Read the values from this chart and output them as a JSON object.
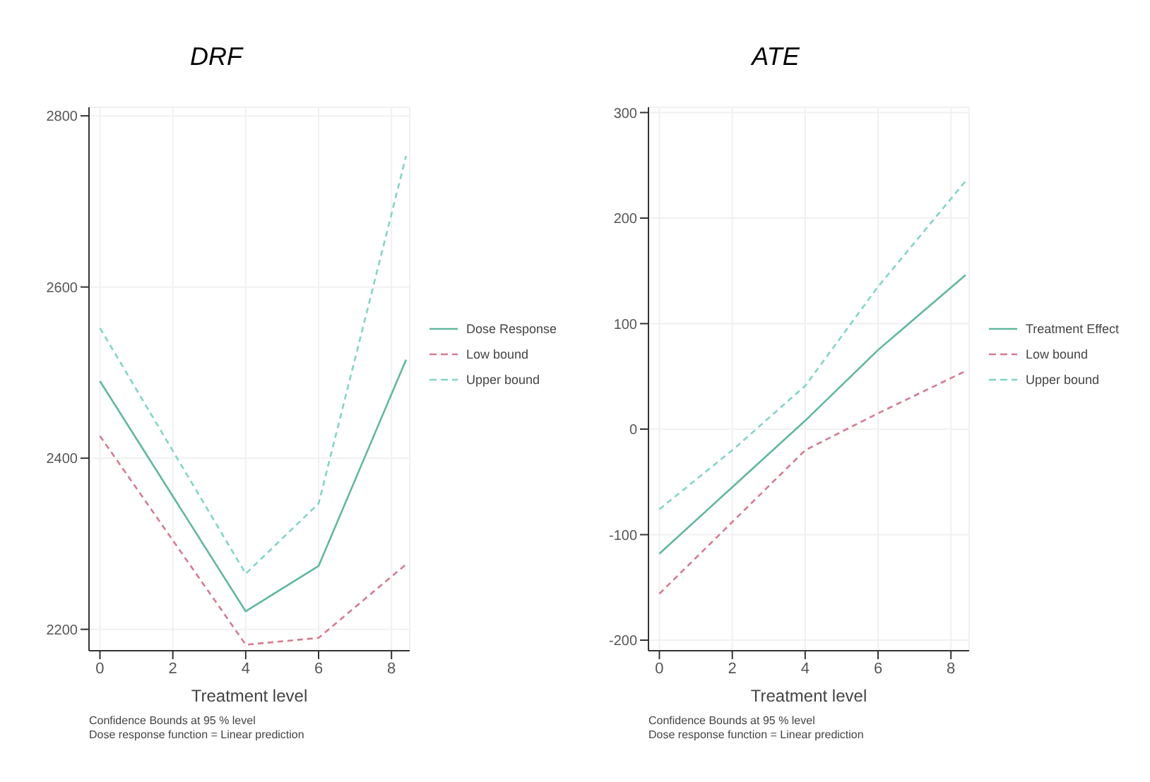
{
  "chart_data": [
    {
      "type": "line",
      "title": "DRF",
      "xlabel": "Treatment level",
      "xlim": [
        -0.3,
        8.5
      ],
      "xticks": [
        0,
        2,
        4,
        6,
        8
      ],
      "ylim": [
        2175,
        2810
      ],
      "yticks": [
        2200,
        2400,
        2600,
        2800
      ],
      "grid": true,
      "legend": "right",
      "marker": "none",
      "annotations": [
        "Confidence Bounds at 95 % level",
        "Dose response function = Linear prediction"
      ],
      "series": [
        {
          "name": "Dose Response",
          "color": "#5fb8a0",
          "line_style": "solid",
          "x": [
            0,
            4,
            6,
            8.4
          ],
          "values": [
            2490,
            2221,
            2274,
            2515
          ]
        },
        {
          "name": "Low bound",
          "color": "#d77a8f",
          "line_style": "dashed",
          "x": [
            0,
            4,
            6,
            8.4
          ],
          "values": [
            2426,
            2182,
            2190,
            2276
          ]
        },
        {
          "name": "Upper bound",
          "color": "#7fd6c8",
          "line_style": "dashed",
          "x": [
            0,
            4,
            6,
            8.4
          ],
          "values": [
            2552,
            2265,
            2347,
            2753
          ]
        }
      ]
    },
    {
      "type": "line",
      "title": "ATE",
      "xlabel": "Treatment level",
      "xlim": [
        -0.3,
        8.5
      ],
      "xticks": [
        0,
        2,
        4,
        6,
        8
      ],
      "ylim": [
        -210,
        305
      ],
      "yticks": [
        -200,
        -100,
        0,
        100,
        200,
        300
      ],
      "grid": true,
      "legend": "right",
      "marker": "none",
      "annotations": [
        "Confidence Bounds at 95 % level",
        "Dose response function = Linear prediction"
      ],
      "series": [
        {
          "name": "Treatment Effect",
          "color": "#5fb8a0",
          "line_style": "solid",
          "x": [
            0,
            2,
            4,
            6,
            8.4
          ],
          "values": [
            -118,
            -55,
            8,
            75,
            146
          ]
        },
        {
          "name": "Low bound",
          "color": "#d77a8f",
          "line_style": "dashed",
          "x": [
            0,
            2,
            4,
            6,
            8.4
          ],
          "values": [
            -156,
            -88,
            -20,
            15,
            55
          ]
        },
        {
          "name": "Upper bound",
          "color": "#7fd6c8",
          "line_style": "dashed",
          "x": [
            0,
            2,
            4,
            6,
            8.4
          ],
          "values": [
            -76,
            -20,
            41,
            135,
            235
          ]
        }
      ]
    }
  ]
}
